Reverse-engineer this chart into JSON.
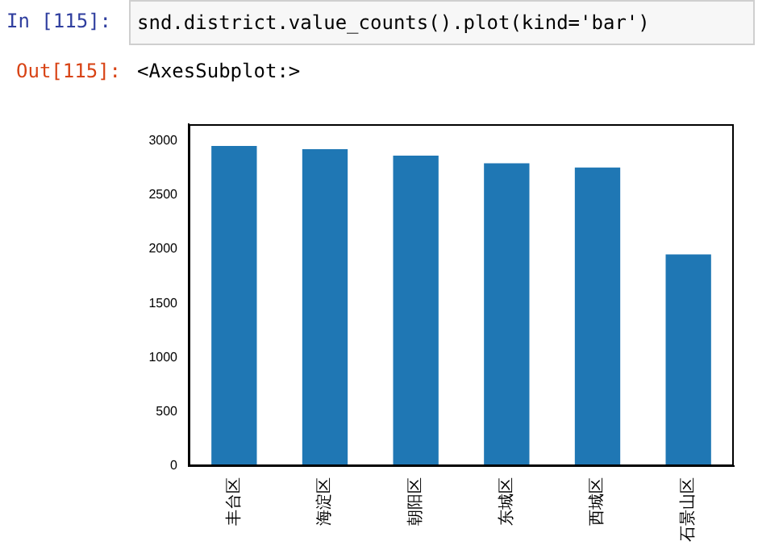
{
  "chart_data": {
    "type": "bar",
    "categories": [
      "丰台区",
      "海淀区",
      "朝阳区",
      "东城区",
      "西城区",
      "石景山区"
    ],
    "values": [
      2950,
      2920,
      2860,
      2790,
      2750,
      1950
    ],
    "color": "#1f77b4",
    "ylim": [
      0,
      3150
    ],
    "yticks": [
      0,
      500,
      1000,
      1500,
      2000,
      2500,
      3000
    ],
    "grid": false,
    "legend": false,
    "annotations": [
      "In  [115]:",
      "snd.district.value_counts().plot(kind='bar')",
      "Out[115]:",
      "<AxesSubplot:>"
    ]
  }
}
